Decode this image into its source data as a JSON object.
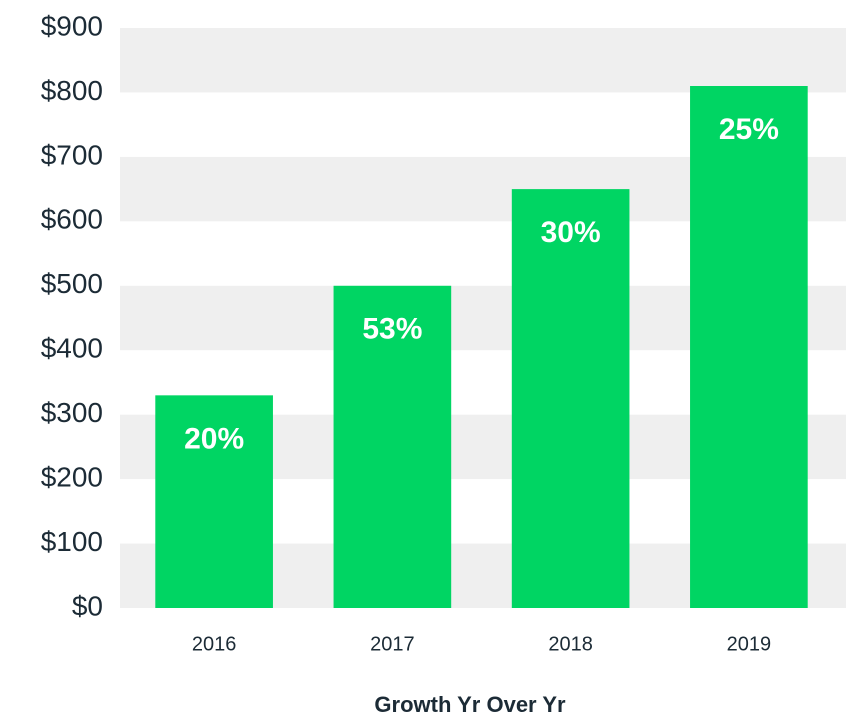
{
  "chart_data": {
    "type": "bar",
    "x_label": "Growth Yr Over Yr",
    "categories": [
      "2016",
      "2017",
      "2018",
      "2019"
    ],
    "values": [
      330,
      500,
      650,
      810
    ],
    "annotations": [
      "20%",
      "53%",
      "30%",
      "25%"
    ],
    "color": "#00d563",
    "ylim": [
      0,
      900
    ],
    "yticks": [
      {
        "value": 0,
        "label": "$0"
      },
      {
        "value": 100,
        "label": "$100"
      },
      {
        "value": 200,
        "label": "$200"
      },
      {
        "value": 300,
        "label": "$300"
      },
      {
        "value": 400,
        "label": "$400"
      },
      {
        "value": 500,
        "label": "$500"
      },
      {
        "value": 600,
        "label": "$600"
      },
      {
        "value": 700,
        "label": "$700"
      },
      {
        "value": 800,
        "label": "$800"
      },
      {
        "value": 900,
        "label": "$900"
      }
    ],
    "grid": true
  }
}
